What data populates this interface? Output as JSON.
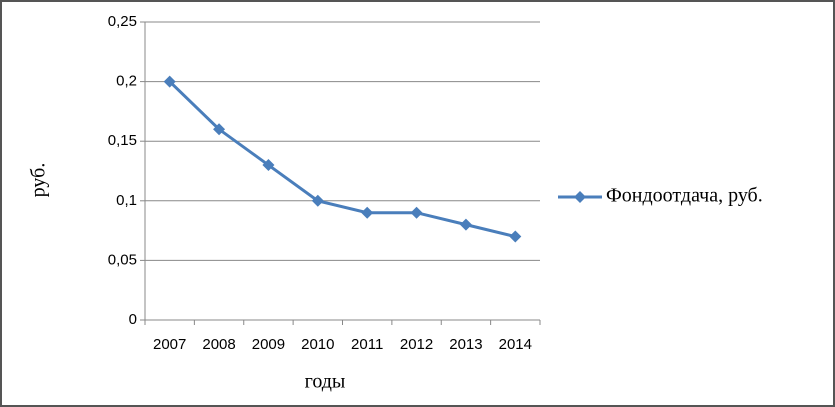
{
  "chart_data": {
    "type": "line",
    "x_label": "годы",
    "y_label": "руб.",
    "categories": [
      "2007",
      "2008",
      "2009",
      "2010",
      "2011",
      "2012",
      "2013",
      "2014"
    ],
    "series": [
      {
        "name": "Фондоотдача, руб.",
        "color": "#4a7ebb",
        "values": [
          0.2,
          0.16,
          0.13,
          0.1,
          0.09,
          0.09,
          0.08,
          0.07
        ]
      }
    ],
    "ylim": [
      0,
      0.25
    ],
    "yticks": [
      0,
      {
        "value": 0.05,
        "label": "0,05"
      },
      {
        "value": 0.1,
        "label": "0,1"
      },
      {
        "value": 0.15,
        "label": "0,15"
      },
      {
        "value": 0.2,
        "label": "0,2"
      },
      {
        "value": 0.25,
        "label": "0,25"
      }
    ],
    "grid": true,
    "legend": "right"
  }
}
